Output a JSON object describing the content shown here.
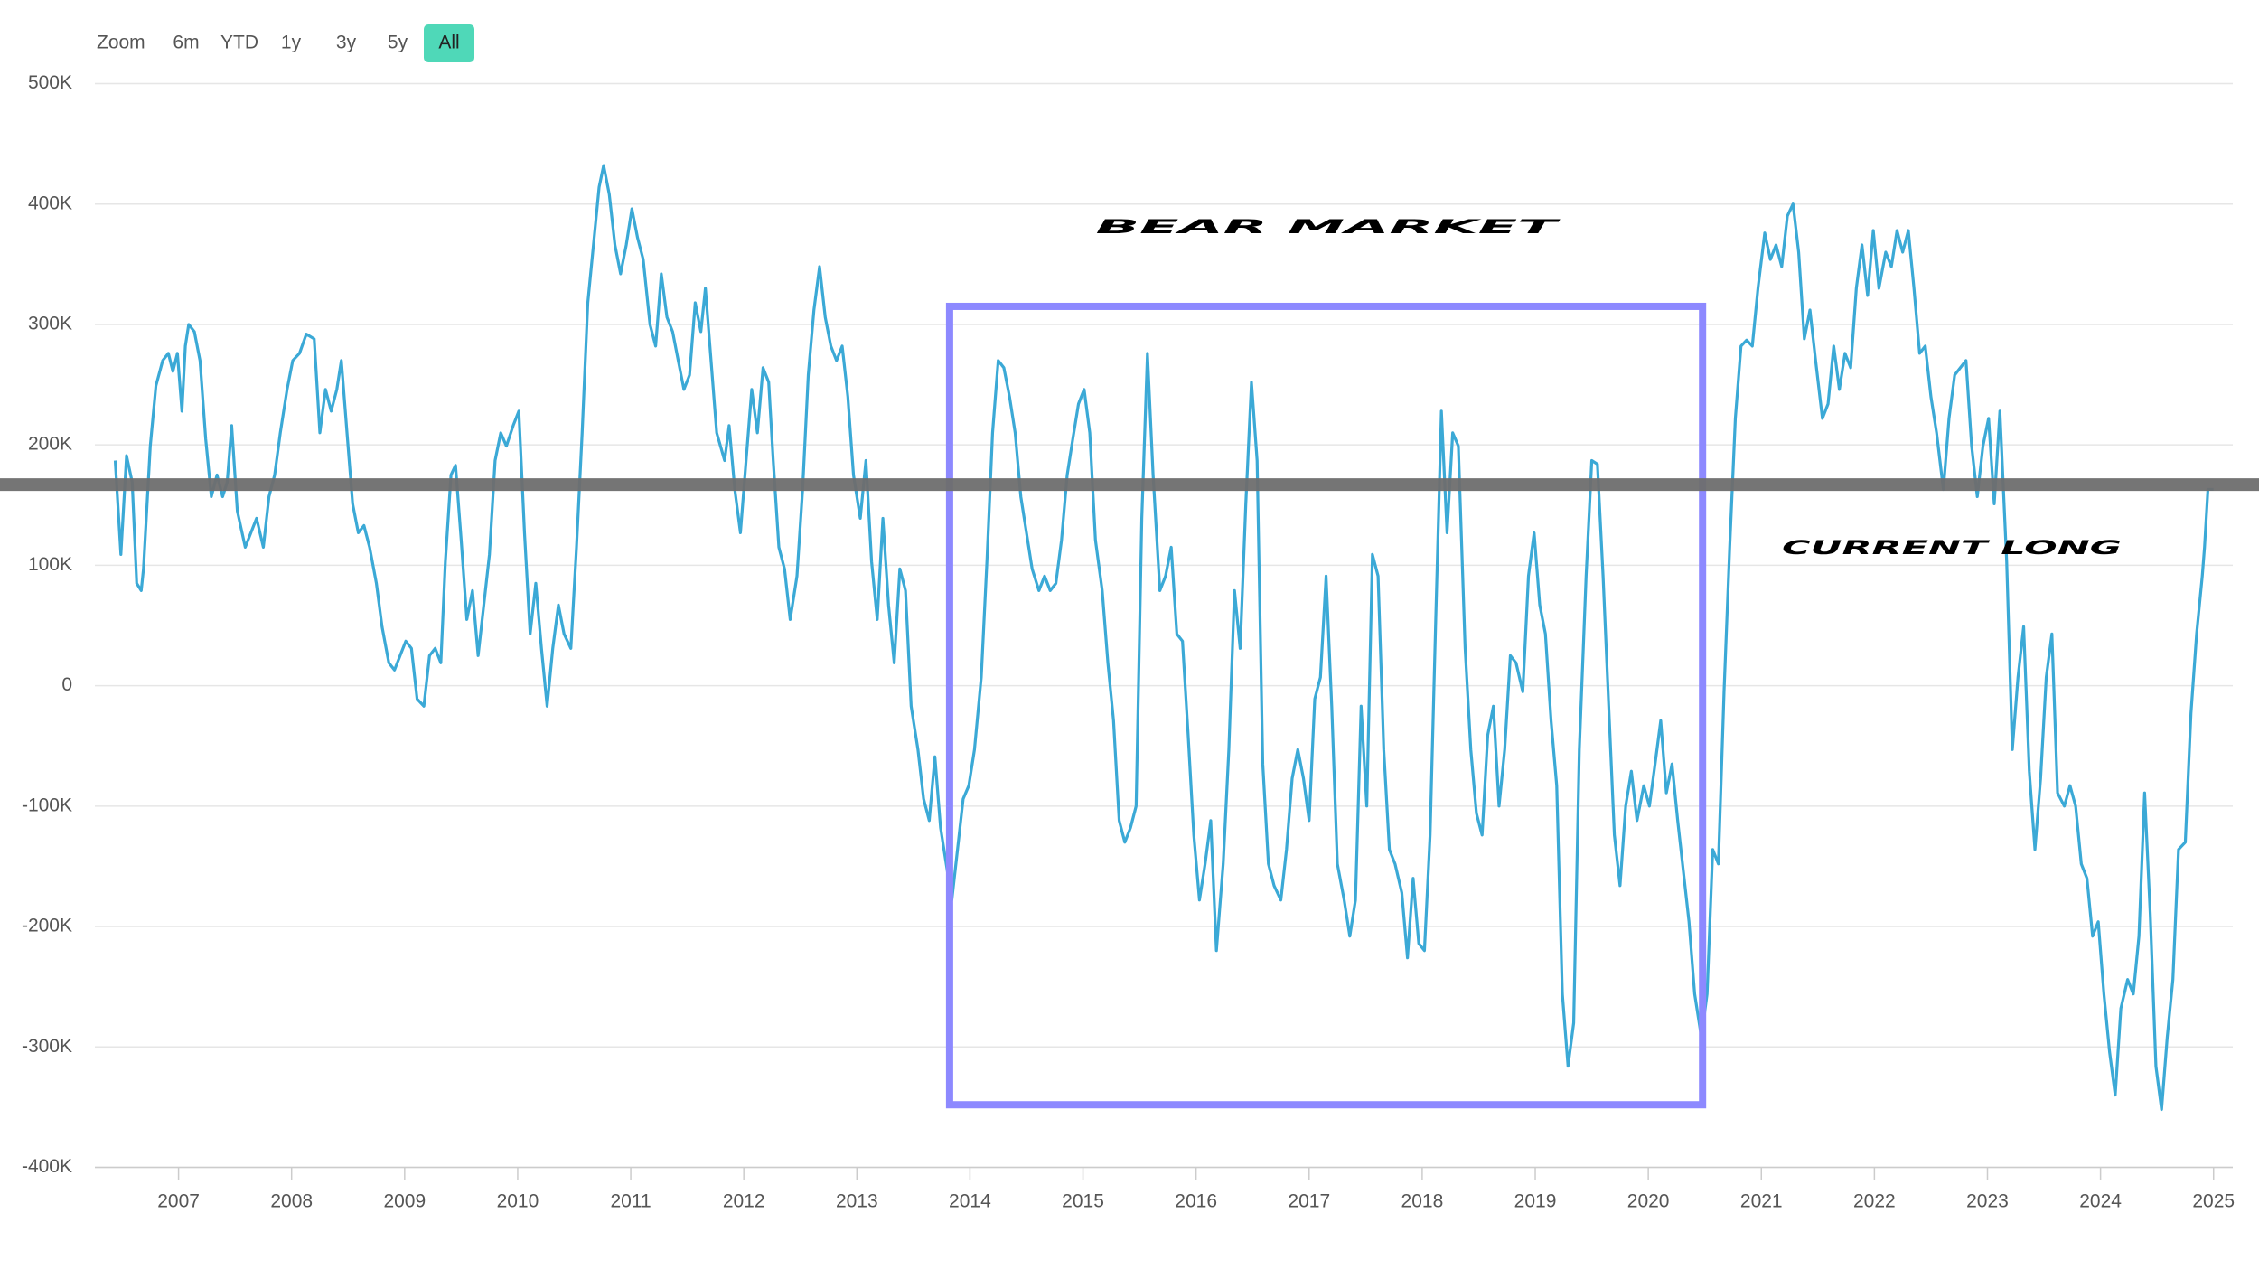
{
  "chart_data": {
    "type": "line",
    "range_selector": {
      "label": "Zoom",
      "buttons": [
        "6m",
        "YTD",
        "1y",
        "3y",
        "5y",
        "All"
      ],
      "selected": 5
    },
    "annotations": [
      "BEAR MARKET",
      "CURRENT LONG"
    ],
    "color": "#3ba9d6",
    "grid": true,
    "xlim": [
      2006.26,
      2025.17
    ],
    "xticks": [
      2007,
      2008,
      2009,
      2010,
      2011,
      2012,
      2013,
      2014,
      2015,
      2016,
      2017,
      2018,
      2019,
      2020,
      2021,
      2022,
      2023,
      2024,
      2025
    ],
    "ylim": [
      -400000,
      500000
    ],
    "yticks": [
      {
        "value": -400000,
        "label": "-400K"
      },
      {
        "value": -300000,
        "label": "-300K"
      },
      {
        "value": -200000,
        "label": "-200K"
      },
      {
        "value": -100000,
        "label": "-100K"
      },
      0,
      {
        "value": 100000,
        "label": "100K"
      },
      {
        "value": 200000,
        "label": "200K"
      },
      {
        "value": 300000,
        "label": "300K"
      },
      {
        "value": 400000,
        "label": "400K"
      },
      {
        "value": 500000,
        "label": "500K"
      }
    ],
    "reference_line": 167000,
    "reference_color": "#6e6e6e",
    "highlight": {
      "x": [
        2013.82,
        2020.48
      ],
      "y": [
        -348000,
        315000
      ],
      "color": "#8d89ff"
    },
    "x": [
      2006.44,
      2006.49,
      2006.54,
      2006.59,
      2006.63,
      2006.67,
      2006.69,
      2006.75,
      2006.8,
      2006.86,
      2006.91,
      2006.95,
      2006.99,
      2007.03,
      2007.06,
      2007.09,
      2007.14,
      2007.19,
      2007.24,
      2007.29,
      2007.34,
      2007.39,
      2007.43,
      2007.47,
      2007.52,
      2007.59,
      2007.64,
      2007.69,
      2007.75,
      2007.8,
      2007.85,
      2007.9,
      2007.96,
      2008.01,
      2008.07,
      2008.13,
      2008.2,
      2008.25,
      2008.3,
      2008.35,
      2008.4,
      2008.44,
      2008.49,
      2008.54,
      2008.59,
      2008.64,
      2008.69,
      2008.75,
      2008.8,
      2008.86,
      2008.91,
      2008.96,
      2009.01,
      2009.06,
      2009.11,
      2009.17,
      2009.22,
      2009.27,
      2009.32,
      2009.36,
      2009.41,
      2009.45,
      2009.5,
      2009.55,
      2009.6,
      2009.65,
      2009.7,
      2009.75,
      2009.8,
      2009.85,
      2009.9,
      2009.96,
      2010.01,
      2010.06,
      2010.11,
      2010.16,
      2010.21,
      2010.26,
      2010.31,
      2010.36,
      2010.41,
      2010.47,
      2010.52,
      2010.57,
      2010.62,
      2010.67,
      2010.72,
      2010.76,
      2010.81,
      2010.86,
      2010.91,
      2010.96,
      2011.01,
      2011.06,
      2011.11,
      2011.17,
      2011.22,
      2011.27,
      2011.32,
      2011.37,
      2011.42,
      2011.47,
      2011.52,
      2011.57,
      2011.62,
      2011.66,
      2011.71,
      2011.76,
      2011.83,
      2011.87,
      2011.92,
      2011.97,
      2012.02,
      2012.07,
      2012.12,
      2012.17,
      2012.22,
      2012.26,
      2012.31,
      2012.36,
      2012.41,
      2012.47,
      2012.52,
      2012.57,
      2012.62,
      2012.67,
      2012.72,
      2012.77,
      2012.82,
      2012.87,
      2012.92,
      2012.97,
      2013.03,
      2013.08,
      2013.13,
      2013.18,
      2013.23,
      2013.28,
      2013.33,
      2013.38,
      2013.43,
      2013.48,
      2013.54,
      2013.59,
      2013.64,
      2013.69,
      2013.74,
      2013.79,
      2013.84,
      2013.89,
      2013.94,
      2013.99,
      2014.04,
      2014.1,
      2014.15,
      2014.2,
      2014.25,
      2014.3,
      2014.35,
      2014.4,
      2014.45,
      2014.5,
      2014.55,
      2014.61,
      2014.66,
      2014.71,
      2014.76,
      2014.81,
      2014.86,
      2014.91,
      2014.96,
      2015.01,
      2015.06,
      2015.11,
      2015.17,
      2015.22,
      2015.27,
      2015.32,
      2015.37,
      2015.42,
      2015.47,
      2015.52,
      2015.57,
      2015.62,
      2015.68,
      2015.73,
      2015.78,
      2015.83,
      2015.88,
      2015.93,
      2015.98,
      2016.03,
      2016.08,
      2016.13,
      2016.18,
      2016.24,
      2016.29,
      2016.34,
      2016.39,
      2016.44,
      2016.49,
      2016.54,
      2016.59,
      2016.64,
      2016.69,
      2016.75,
      2016.8,
      2016.85,
      2016.9,
      2016.95,
      2017.0,
      2017.05,
      2017.1,
      2017.15,
      2017.2,
      2017.25,
      2017.31,
      2017.36,
      2017.41,
      2017.46,
      2017.51,
      2017.56,
      2017.61,
      2017.66,
      2017.71,
      2017.76,
      2017.82,
      2017.87,
      2017.92,
      2017.97,
      2018.02,
      2018.07,
      2018.12,
      2018.17,
      2018.22,
      2018.27,
      2018.32,
      2018.38,
      2018.43,
      2018.48,
      2018.53,
      2018.58,
      2018.63,
      2018.68,
      2018.73,
      2018.78,
      2018.83,
      2018.89,
      2018.94,
      2018.99,
      2019.04,
      2019.09,
      2019.14,
      2019.19,
      2019.24,
      2019.29,
      2019.34,
      2019.39,
      2019.45,
      2019.5,
      2019.55,
      2019.6,
      2019.65,
      2019.7,
      2019.75,
      2019.8,
      2019.85,
      2019.9,
      2019.96,
      2020.01,
      2020.06,
      2020.11,
      2020.16,
      2020.21,
      2020.26,
      2020.31,
      2020.36,
      2020.41,
      2020.47,
      2020.52,
      2020.57,
      2020.62,
      2020.67,
      2020.72,
      2020.77,
      2020.82,
      2020.87,
      2020.92,
      2020.97,
      2021.03,
      2021.08,
      2021.13,
      2021.18,
      2021.23,
      2021.28,
      2021.33,
      2021.38,
      2021.43,
      2021.48,
      2021.54,
      2021.59,
      2021.64,
      2021.69,
      2021.74,
      2021.79,
      2021.84,
      2021.89,
      2021.94,
      2021.99,
      2022.04,
      2022.1,
      2022.15,
      2022.2,
      2022.25,
      2022.3,
      2022.35,
      2022.4,
      2022.45,
      2022.5,
      2022.55,
      2022.61,
      2022.66,
      2022.71,
      2022.76,
      2022.81,
      2022.86,
      2022.91,
      2022.96,
      2023.01,
      2023.06,
      2023.11,
      2023.17,
      2023.22,
      2023.27,
      2023.32,
      2023.37,
      2023.42,
      2023.47,
      2023.52,
      2023.57,
      2023.62,
      2023.68,
      2023.73,
      2023.78,
      2023.83,
      2023.88,
      2023.93,
      2023.98,
      2024.03,
      2024.08,
      2024.13,
      2024.18,
      2024.24,
      2024.29,
      2024.34,
      2024.39,
      2024.44,
      2024.49,
      2024.54,
      2024.59,
      2024.64,
      2024.69,
      2024.75,
      2024.8,
      2024.85,
      2024.9,
      2024.92,
      2024.95,
      2025.0
    ],
    "values": [
      187000,
      109000,
      191000,
      169000,
      85000,
      79000,
      97000,
      199000,
      249000,
      270000,
      276000,
      261000,
      276000,
      228000,
      282000,
      300000,
      294000,
      270000,
      205000,
      157000,
      175000,
      157000,
      169000,
      216000,
      145000,
      115000,
      127000,
      139000,
      115000,
      157000,
      175000,
      210000,
      246000,
      270000,
      276000,
      292000,
      288000,
      210000,
      246000,
      228000,
      246000,
      270000,
      210000,
      151000,
      127000,
      133000,
      115000,
      85000,
      49000,
      19000,
      13000,
      25000,
      37000,
      31000,
      -11000,
      -17000,
      25000,
      31000,
      19000,
      103000,
      175000,
      183000,
      121000,
      55000,
      79000,
      25000,
      67000,
      109000,
      187000,
      210000,
      199000,
      216000,
      228000,
      127000,
      43000,
      85000,
      31000,
      -17000,
      31000,
      67000,
      43000,
      31000,
      115000,
      210000,
      318000,
      366000,
      414000,
      432000,
      408000,
      366000,
      342000,
      366000,
      396000,
      372000,
      354000,
      300000,
      282000,
      342000,
      306000,
      294000,
      270000,
      246000,
      258000,
      318000,
      294000,
      330000,
      270000,
      210000,
      187000,
      216000,
      163000,
      127000,
      187000,
      246000,
      210000,
      264000,
      252000,
      187000,
      115000,
      97000,
      55000,
      91000,
      163000,
      258000,
      312000,
      348000,
      306000,
      282000,
      270000,
      282000,
      240000,
      175000,
      139000,
      187000,
      103000,
      55000,
      139000,
      67000,
      19000,
      97000,
      79000,
      -17000,
      -53000,
      -94000,
      -112000,
      -59000,
      -118000,
      -148000,
      -178000,
      -136000,
      -94000,
      -83000,
      -53000,
      7000,
      103000,
      210000,
      270000,
      264000,
      240000,
      210000,
      157000,
      127000,
      97000,
      79000,
      91000,
      79000,
      85000,
      121000,
      175000,
      205000,
      234000,
      246000,
      210000,
      121000,
      79000,
      19000,
      -29000,
      -112000,
      -130000,
      -118000,
      -100000,
      139000,
      276000,
      175000,
      79000,
      91000,
      115000,
      43000,
      37000,
      -41000,
      -124000,
      -178000,
      -148000,
      -112000,
      -220000,
      -148000,
      -53000,
      79000,
      31000,
      151000,
      252000,
      187000,
      -65000,
      -148000,
      -166000,
      -178000,
      -136000,
      -77000,
      -53000,
      -77000,
      -112000,
      -11000,
      7000,
      91000,
      -17000,
      -148000,
      -178000,
      -208000,
      -178000,
      -17000,
      -100000,
      109000,
      91000,
      -53000,
      -136000,
      -148000,
      -172000,
      -226000,
      -160000,
      -214000,
      -220000,
      -124000,
      55000,
      228000,
      127000,
      210000,
      199000,
      31000,
      -53000,
      -106000,
      -124000,
      -41000,
      -17000,
      -100000,
      -53000,
      25000,
      19000,
      -5000,
      91000,
      127000,
      67000,
      43000,
      -29000,
      -83000,
      -256000,
      -316000,
      -280000,
      -53000,
      91000,
      187000,
      184000,
      91000,
      -17000,
      -124000,
      -166000,
      -100000,
      -71000,
      -112000,
      -83000,
      -100000,
      -65000,
      -29000,
      -89000,
      -65000,
      -112000,
      -154000,
      -196000,
      -256000,
      -292000,
      -256000,
      -136000,
      -148000,
      -5000,
      115000,
      222000,
      282000,
      287000,
      282000,
      330000,
      376000,
      354000,
      366000,
      348000,
      390000,
      400000,
      360000,
      288000,
      312000,
      270000,
      222000,
      234000,
      282000,
      246000,
      276000,
      264000,
      330000,
      366000,
      324000,
      378000,
      330000,
      360000,
      348000,
      378000,
      360000,
      378000,
      330000,
      276000,
      282000,
      240000,
      210000,
      163000,
      222000,
      258000,
      264000,
      270000,
      199000,
      157000,
      199000,
      222000,
      151000,
      228000,
      103000,
      -53000,
      7000,
      49000,
      -71000,
      -136000,
      -77000,
      7000,
      43000,
      -89000,
      -100000,
      -83000,
      -100000,
      -148000,
      -160000,
      -208000,
      -196000,
      -256000,
      -304000,
      -340000,
      -268000,
      -244000,
      -256000,
      -208000,
      -89000,
      -190000,
      -316000,
      -352000,
      -292000,
      -244000,
      -136000,
      -130000,
      -23000,
      43000,
      91000,
      115000,
      163000,
      163000
    ]
  }
}
